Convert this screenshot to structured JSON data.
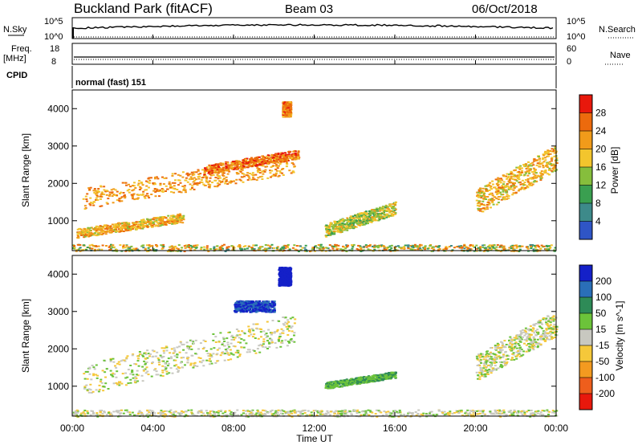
{
  "header": {
    "station": "Buckland Park (fitACF)",
    "beam": "Beam 03",
    "date": "06/Oct/2018"
  },
  "strips": {
    "nsky_label": "N.Sky",
    "nsky_ticks": [
      "10^5",
      "10^0"
    ],
    "nsearch_label": "N.Search",
    "nsearch_ticks": [
      "10^5",
      "10^0"
    ],
    "freq_label_1": "Freq.",
    "freq_label_2": "[MHz]",
    "freq_ticks": [
      "18",
      "8"
    ],
    "nave_label": "Nave",
    "nave_ticks": [
      "60",
      "0"
    ],
    "cpid_label": "CPID",
    "cpid_text": "normal (fast) 151"
  },
  "power_panel": {
    "ylabel": "Slant Range [km]",
    "yticks": [
      "4000",
      "3000",
      "2000",
      "1000"
    ],
    "colorbar_label": "Power [dB]",
    "colorbar_ticks": [
      "28",
      "24",
      "20",
      "16",
      "12",
      "8",
      "4"
    ],
    "colors": [
      "#e8180c",
      "#ec6a0d",
      "#f19b1a",
      "#f3c52d",
      "#86be3c",
      "#3a9f50",
      "#3d8a8a",
      "#2f55c6",
      "#1d27e0"
    ]
  },
  "velocity_panel": {
    "ylabel": "Slant Range [km]",
    "yticks": [
      "4000",
      "3000",
      "2000",
      "1000"
    ],
    "colorbar_label": "Velocity [m s^-1]",
    "colorbar_ticks": [
      "200",
      "100",
      "50",
      "15",
      "-15",
      "-50",
      "-100",
      "-200"
    ],
    "colors": [
      "#1420c8",
      "#2a6fb8",
      "#2e8b57",
      "#6cc33a",
      "#c8c8c0",
      "#f5c83a",
      "#f39a20",
      "#ee5e1c",
      "#e8180c"
    ]
  },
  "time_axis": {
    "xticks": [
      "00:00",
      "04:00",
      "08:00",
      "12:00",
      "16:00",
      "20:00",
      "00:00"
    ],
    "xlabel": "Time UT"
  },
  "chart_data": {
    "type": "heatmap",
    "title": "Buckland Park (fitACF) Beam 03 06/Oct/2018",
    "xlabel": "Time UT",
    "ylabel": "Slant Range [km]",
    "xlim": [
      0,
      24
    ],
    "ylim": [
      200,
      4500
    ],
    "panels": [
      {
        "name": "Power [dB]",
        "clim": [
          0,
          32
        ],
        "features": [
          {
            "t0": 0.0,
            "t1": 24.0,
            "r0": 200,
            "r1": 380,
            "kind": "ground_scatter"
          },
          {
            "t0": 0.2,
            "t1": 5.5,
            "r0": 500,
            "r1": 1200,
            "kind": "band",
            "value": 22
          },
          {
            "t0": 0.5,
            "t1": 11.0,
            "r0": 1200,
            "r1": 2800,
            "kind": "band",
            "value": 24
          },
          {
            "t0": 6.5,
            "t1": 11.2,
            "r0": 2200,
            "r1": 2900,
            "kind": "band",
            "value": 27
          },
          {
            "t0": 10.4,
            "t1": 10.8,
            "r0": 3800,
            "r1": 4200,
            "kind": "patch",
            "value": 26
          },
          {
            "t0": 12.5,
            "t1": 16.0,
            "r0": 500,
            "r1": 1500,
            "kind": "band",
            "value": 18
          },
          {
            "t0": 20.0,
            "t1": 24.0,
            "r0": 1000,
            "r1": 3000,
            "kind": "band",
            "value": 22
          }
        ]
      },
      {
        "name": "Velocity [m s^-1]",
        "clim": [
          -200,
          200
        ],
        "features": [
          {
            "t0": 0.0,
            "t1": 24.0,
            "r0": 200,
            "r1": 380,
            "kind": "ground_scatter"
          },
          {
            "t0": 0.5,
            "t1": 11.0,
            "r0": 600,
            "r1": 2900,
            "kind": "band",
            "value": 0
          },
          {
            "t0": 8.0,
            "t1": 10.0,
            "r0": 3000,
            "r1": 3300,
            "kind": "patch",
            "value": 150
          },
          {
            "t0": 10.2,
            "t1": 10.8,
            "r0": 3700,
            "r1": 4200,
            "kind": "patch",
            "value": 200
          },
          {
            "t0": 12.5,
            "t1": 16.0,
            "r0": 900,
            "r1": 1400,
            "kind": "band",
            "value": 30
          },
          {
            "t0": 20.0,
            "t1": 24.0,
            "r0": 1000,
            "r1": 3000,
            "kind": "band",
            "value": 0
          }
        ]
      }
    ]
  }
}
